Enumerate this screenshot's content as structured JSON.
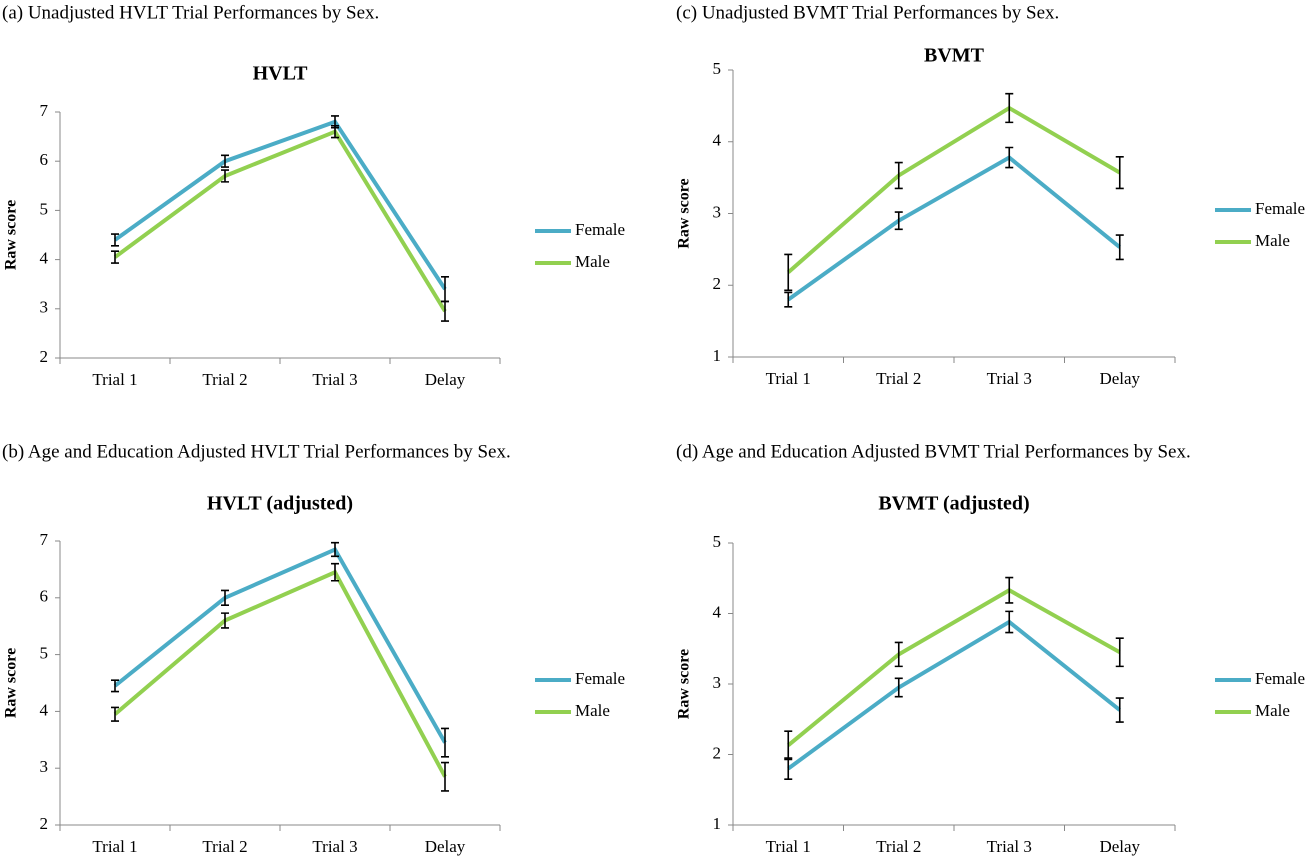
{
  "chart_data": [
    {
      "type": "line",
      "caption": "(a)  Unadjusted HVLT Trial Performances by Sex.",
      "title": "HVLT",
      "y_label": "Raw score",
      "categories": [
        "Trial 1",
        "Trial 2",
        "Trial 3",
        "Delay"
      ],
      "series": [
        {
          "name": "Female",
          "color": "#4bacc6",
          "values": [
            4.4,
            6.0,
            6.8,
            3.4
          ],
          "errors": [
            0.12,
            0.12,
            0.12,
            0.25
          ]
        },
        {
          "name": "Male",
          "color": "#92d050",
          "values": [
            4.05,
            5.7,
            6.6,
            2.95
          ],
          "errors": [
            0.12,
            0.12,
            0.12,
            0.2
          ]
        }
      ],
      "ylim": [
        2,
        7
      ],
      "yticks": [
        2,
        3,
        4,
        5,
        6,
        7
      ],
      "grid": false
    },
    {
      "type": "line",
      "caption": "(b)  Age and Education Adjusted HVLT Trial Performances by Sex.",
      "title": "HVLT (adjusted)",
      "y_label": "Raw score",
      "categories": [
        "Trial 1",
        "Trial 2",
        "Trial 3",
        "Delay"
      ],
      "series": [
        {
          "name": "Female",
          "color": "#4bacc6",
          "values": [
            4.45,
            6.0,
            6.85,
            3.45
          ],
          "errors": [
            0.1,
            0.13,
            0.12,
            0.25
          ]
        },
        {
          "name": "Male",
          "color": "#92d050",
          "values": [
            3.95,
            5.6,
            6.45,
            2.85
          ],
          "errors": [
            0.12,
            0.13,
            0.15,
            0.25
          ]
        }
      ],
      "ylim": [
        2,
        7
      ],
      "yticks": [
        2,
        3,
        4,
        5,
        6,
        7
      ],
      "grid": false
    },
    {
      "type": "line",
      "caption": "(c)  Unadjusted BVMT Trial Performances by Sex.",
      "title": "BVMT",
      "y_label": "Raw score",
      "categories": [
        "Trial 1",
        "Trial 2",
        "Trial 3",
        "Delay"
      ],
      "series": [
        {
          "name": "Female",
          "color": "#4bacc6",
          "values": [
            1.8,
            2.9,
            3.78,
            2.53
          ],
          "errors": [
            0.1,
            0.12,
            0.14,
            0.17
          ]
        },
        {
          "name": "Male",
          "color": "#92d050",
          "values": [
            2.18,
            3.53,
            4.47,
            3.57
          ],
          "errors": [
            0.25,
            0.18,
            0.2,
            0.22
          ]
        }
      ],
      "ylim": [
        1,
        5
      ],
      "yticks": [
        1,
        2,
        3,
        4,
        5
      ],
      "grid": false
    },
    {
      "type": "line",
      "caption": "(d)  Age and Education Adjusted BVMT Trial Performances by Sex.",
      "title": "BVMT (adjusted)",
      "y_label": "Raw score",
      "categories": [
        "Trial 1",
        "Trial 2",
        "Trial 3",
        "Delay"
      ],
      "series": [
        {
          "name": "Female",
          "color": "#4bacc6",
          "values": [
            1.8,
            2.95,
            3.88,
            2.63
          ],
          "errors": [
            0.15,
            0.13,
            0.15,
            0.17
          ]
        },
        {
          "name": "Male",
          "color": "#92d050",
          "values": [
            2.13,
            3.42,
            4.33,
            3.45
          ],
          "errors": [
            0.2,
            0.17,
            0.18,
            0.2
          ]
        }
      ],
      "ylim": [
        1,
        5
      ],
      "yticks": [
        1,
        2,
        3,
        4,
        5
      ],
      "grid": false
    }
  ]
}
